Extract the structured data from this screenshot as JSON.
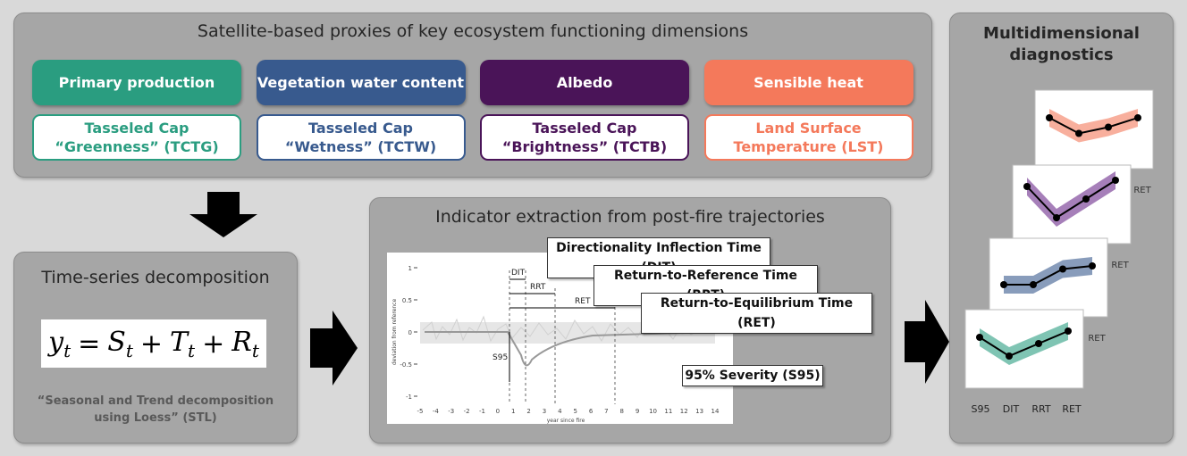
{
  "proxies": {
    "title": "Satellite-based proxies of key ecosystem functioning dimensions",
    "dimensions": [
      {
        "name": "Primary production",
        "proxy": [
          "Tasseled Cap",
          "“Greenness” (TCTG)"
        ]
      },
      {
        "name": "Vegetation water content",
        "proxy": [
          "Tasseled Cap",
          "“Wetness” (TCTW)"
        ]
      },
      {
        "name": "Albedo",
        "proxy": [
          "Tasseled Cap",
          "“Brightness” (TCTB)"
        ]
      },
      {
        "name": "Sensible heat",
        "proxy": [
          "Land Surface",
          "Temperature (LST)"
        ]
      }
    ]
  },
  "decomposition": {
    "title": "Time-series decomposition",
    "equation": [
      {
        "base": "y",
        "sub": "t"
      },
      "=",
      {
        "base": "S",
        "sub": "t"
      },
      "+",
      {
        "base": "T",
        "sub": "t"
      },
      "+",
      {
        "base": "R",
        "sub": "t"
      }
    ],
    "caption": "“Seasonal and Trend decomposition using Loess” (STL)"
  },
  "indicators": {
    "title": "Indicator extraction from post-fire trajectories",
    "labels": [
      "Directionality Inflection Time (DIT)",
      "Return-to-Reference Time (RRT)",
      "Return-to-Equilibrium Time (RET)",
      "95% Severity (S95)"
    ],
    "plot": {
      "y_axis_label": "deviation from reference",
      "x_axis_label": "year since fire",
      "yticks": [
        1,
        0.5,
        0,
        -0.5,
        -1
      ],
      "xticks": [
        -5,
        -4,
        -3,
        -2,
        -1,
        0,
        1,
        2,
        3,
        4,
        5,
        6,
        7,
        8,
        9,
        10,
        11,
        12,
        13,
        14
      ],
      "annotations": [
        "DIT",
        "RRT",
        "RET",
        "S95"
      ]
    }
  },
  "diagnostics": {
    "title": "Multidimensional diagnostics",
    "axis_labels": [
      "S95",
      "DIT",
      "RRT",
      "RET"
    ]
  }
}
